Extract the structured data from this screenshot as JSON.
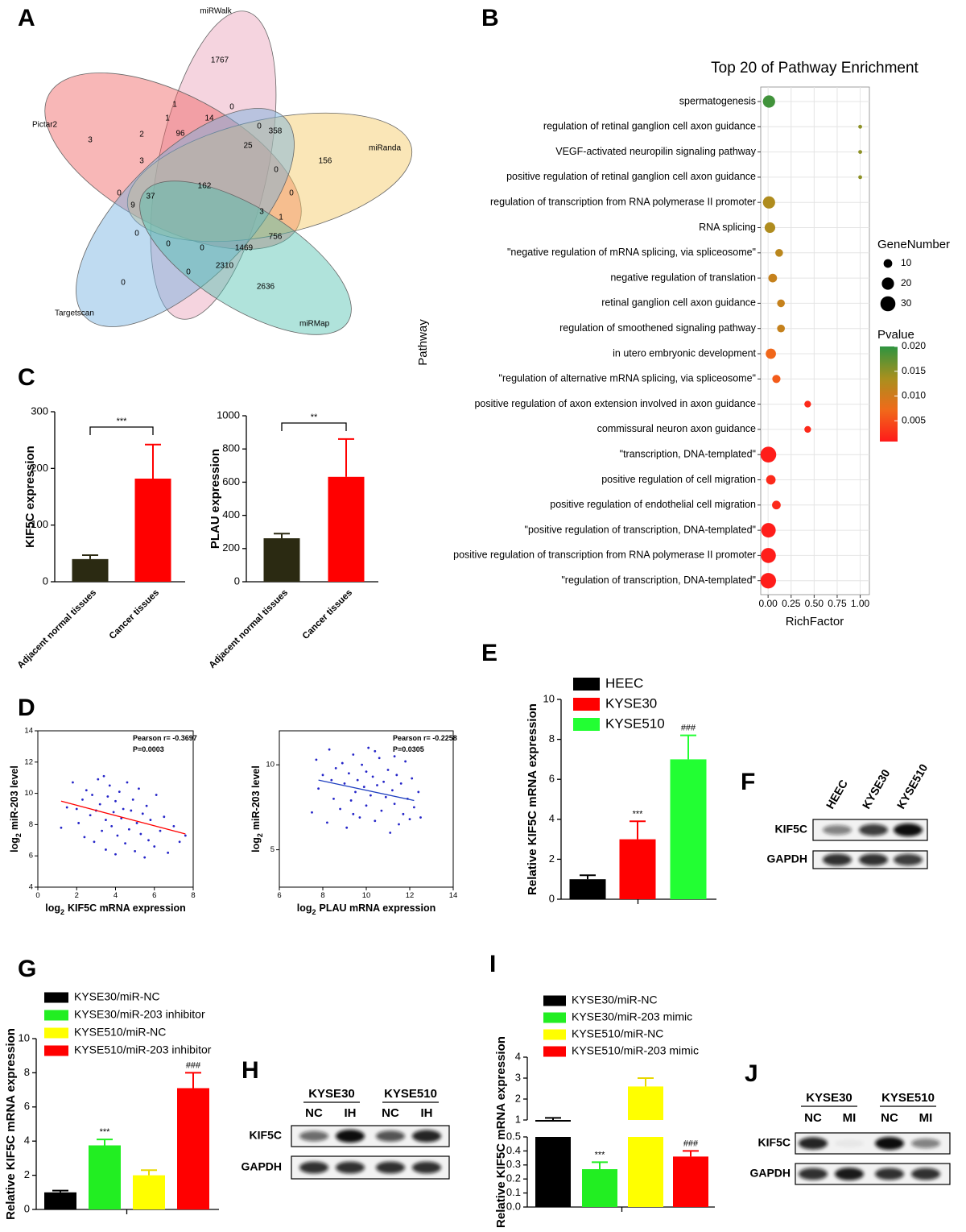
{
  "panel_letters": [
    "A",
    "B",
    "C",
    "D",
    "E",
    "F",
    "G",
    "H",
    "I",
    "J"
  ],
  "venn": {
    "sets": [
      "miRWalk",
      "Pictar2",
      "miRanda",
      "Targetscan",
      "miRMap"
    ],
    "regions": [
      1767,
      1,
      0,
      1,
      14,
      0,
      358,
      3,
      2,
      96,
      156,
      25,
      3,
      0,
      162,
      0,
      0,
      37,
      9,
      3,
      1,
      0,
      756,
      0,
      0,
      1469,
      2310,
      0,
      0,
      2636
    ]
  },
  "chart_data": [
    {
      "type": "dot",
      "title": "Top 20 of Pathway Enrichment",
      "xlabel": "RichFactor",
      "ylabel": "Pathway",
      "categories": [
        "spermatogenesis",
        "regulation of retinal ganglion cell axon guidance",
        "VEGF-activated neuropilin signaling pathway",
        "positive regulation of retinal ganglion cell axon guidance",
        "regulation of transcription from RNA polymerase II promoter",
        "RNA splicing",
        "\"negative regulation of mRNA splicing, via spliceosome\"",
        "negative regulation of translation",
        "retinal ganglion cell axon guidance",
        "regulation of smoothened signaling pathway",
        "in utero embryonic development",
        "\"regulation of alternative mRNA splicing, via spliceosome\"",
        "positive regulation of axon extension involved in axon guidance",
        "commissural neuron axon guidance",
        "\"transcription, DNA-templated\"",
        "positive regulation of cell migration",
        "positive regulation of endothelial cell migration",
        "\"positive regulation of transcription, DNA-templated\"",
        "positive regulation of transcription from RNA polymerase II promoter",
        "\"regulation of transcription, DNA-templated\""
      ],
      "x": [
        0.01,
        1.0,
        1.0,
        1.0,
        0.01,
        0.02,
        0.12,
        0.05,
        0.14,
        0.14,
        0.03,
        0.09,
        0.43,
        0.43,
        0.003,
        0.03,
        0.09,
        0.004,
        0.003,
        0.002
      ],
      "sizes": [
        20,
        2,
        2,
        2,
        20,
        15,
        8,
        10,
        8,
        8,
        14,
        9,
        6,
        6,
        33,
        12,
        10,
        28,
        30,
        32
      ],
      "pvalues": [
        0.019,
        0.015,
        0.015,
        0.015,
        0.013,
        0.013,
        0.012,
        0.011,
        0.011,
        0.011,
        0.007,
        0.006,
        0.002,
        0.002,
        0.001,
        0.002,
        0.002,
        0.001,
        0.001,
        0.001
      ],
      "xlim": [
        -0.08,
        1.1
      ],
      "xticks": [
        {
          "value": 0,
          "label": "0.00"
        },
        {
          "value": 0.25,
          "label": "0.25"
        },
        {
          "value": 0.5,
          "label": "0.50"
        },
        {
          "value": 0.75,
          "label": "0.75"
        },
        {
          "value": 1,
          "label": "1.00"
        }
      ],
      "grid": true,
      "size_legend": {
        "title": "GeneNumber",
        "values": [
          10,
          20,
          30
        ]
      },
      "color_legend": {
        "title": "Pvalue",
        "colorlim": [
          0.0008,
          0.02
        ],
        "ticks": [
          {
            "value": 0.02,
            "label": "0.020"
          },
          {
            "value": 0.015,
            "label": "0.015"
          },
          {
            "value": 0.01,
            "label": "0.010"
          },
          {
            "value": 0.005,
            "label": "0.005"
          }
        ],
        "colors": [
          "#ff1a1a",
          "#f06a1a",
          "#a8901e",
          "#2e9440"
        ]
      }
    },
    {
      "type": "bar",
      "ylabel": "KIF5C expression",
      "categories": [
        "Adjacent normal tissues",
        "Cancer tissues"
      ],
      "values": [
        40,
        182
      ],
      "errors": [
        7,
        60
      ],
      "colors": [
        "#2b2a12",
        "#ff0000"
      ],
      "ylim": [
        0,
        300
      ],
      "yticks": [
        0,
        100,
        200,
        300
      ],
      "bracket": "***"
    },
    {
      "type": "bar",
      "ylabel": "PLAU expression",
      "categories": [
        "Adjacent normal tissues",
        "Cancer tissues"
      ],
      "values": [
        262,
        632
      ],
      "errors": [
        28,
        228
      ],
      "colors": [
        "#2b2a12",
        "#ff0000"
      ],
      "ylim": [
        0,
        1000
      ],
      "yticks": [
        0,
        200,
        400,
        600,
        800,
        1000
      ],
      "bracket": "**"
    },
    {
      "type": "scatter",
      "xlabel": {
        "base": "log",
        "sub": "2",
        "text": "KIF5C mRNA expression"
      },
      "ylabel": {
        "base": "log",
        "sub": "2",
        "text": "miR-203 level"
      },
      "annotation": [
        "Pearson r= -0.3697",
        "P=0.0003"
      ],
      "x": [
        1.2,
        1.5,
        1.8,
        2.0,
        2.1,
        2.3,
        2.4,
        2.5,
        2.7,
        2.8,
        2.9,
        3.0,
        3.1,
        3.2,
        3.3,
        3.4,
        3.5,
        3.5,
        3.6,
        3.7,
        3.8,
        3.9,
        4.0,
        4.0,
        4.1,
        4.2,
        4.3,
        4.4,
        4.5,
        4.6,
        4.7,
        4.8,
        4.9,
        5.0,
        5.1,
        5.2,
        5.3,
        5.4,
        5.5,
        5.6,
        5.7,
        5.8,
        6.0,
        6.1,
        6.3,
        6.5,
        6.7,
        7.0,
        7.3,
        7.6
      ],
      "y": [
        7.8,
        9.1,
        10.7,
        9.0,
        8.1,
        9.6,
        7.2,
        10.2,
        8.6,
        9.9,
        6.9,
        8.9,
        10.9,
        9.3,
        7.6,
        11.1,
        8.3,
        6.4,
        9.8,
        10.5,
        7.9,
        8.8,
        6.1,
        9.5,
        7.3,
        10.1,
        8.4,
        9.0,
        6.8,
        10.7,
        7.7,
        8.9,
        9.6,
        6.3,
        8.1,
        10.3,
        7.4,
        8.7,
        5.9,
        9.2,
        7.0,
        8.3,
        6.6,
        9.9,
        7.6,
        8.5,
        6.2,
        7.9,
        6.9,
        7.3
      ],
      "color": "#2424c8",
      "fit": {
        "x": [
          1.2,
          7.6
        ],
        "y": [
          9.5,
          7.4
        ],
        "color": "#ff0000"
      },
      "xlim": [
        0,
        8
      ],
      "ylim": [
        4,
        14
      ],
      "xticks": [
        0,
        2,
        4,
        6,
        8
      ],
      "yticks": [
        4,
        6,
        8,
        10,
        12,
        14
      ]
    },
    {
      "type": "scatter",
      "xlabel": {
        "base": "log",
        "sub": "2",
        "text": "PLAU mRNA expression"
      },
      "ylabel": {
        "base": "log",
        "sub": "2",
        "text": "miR-203 level"
      },
      "annotation": [
        "Pearson r= -0.2258",
        "P=0.0305"
      ],
      "x": [
        7.5,
        7.7,
        7.8,
        8.0,
        8.2,
        8.3,
        8.5,
        8.6,
        8.8,
        8.9,
        9.0,
        9.1,
        9.2,
        9.3,
        9.4,
        9.5,
        9.6,
        9.7,
        9.8,
        9.9,
        10.0,
        10.0,
        10.1,
        10.2,
        10.3,
        10.4,
        10.5,
        10.6,
        10.7,
        10.8,
        10.9,
        11.0,
        11.1,
        11.2,
        11.3,
        11.4,
        11.5,
        11.6,
        11.7,
        11.8,
        11.9,
        12.0,
        12.1,
        12.2,
        12.4,
        12.5,
        9.4,
        10.4,
        8.4,
        11.3
      ],
      "y": [
        7.2,
        10.3,
        8.6,
        9.4,
        6.6,
        10.9,
        8.0,
        9.8,
        7.4,
        10.1,
        8.9,
        6.3,
        9.5,
        7.9,
        10.6,
        8.4,
        9.1,
        6.9,
        10.0,
        8.7,
        7.6,
        9.6,
        11.0,
        8.2,
        9.3,
        6.7,
        8.8,
        10.4,
        7.3,
        9.0,
        8.1,
        9.7,
        6.0,
        8.5,
        7.7,
        9.4,
        6.5,
        8.9,
        7.1,
        10.2,
        8.0,
        6.8,
        9.2,
        7.5,
        8.4,
        6.9,
        7.1,
        10.8,
        9.1,
        10.5
      ],
      "color": "#2424c8",
      "fit": {
        "x": [
          7.8,
          12.2
        ],
        "y": [
          9.1,
          7.9
        ],
        "color": "#2040c0"
      },
      "xlim": [
        6,
        14
      ],
      "ylim": [
        2.8,
        12
      ],
      "xticks": [
        6,
        8,
        10,
        12,
        14
      ],
      "yticks": [
        5,
        10
      ]
    },
    {
      "type": "bar",
      "ylabel": "Relative KIF5C mRNA expression",
      "categories": [
        "HEEC",
        "KYSE30",
        "KYSE510"
      ],
      "values": [
        1,
        3,
        7
      ],
      "errors": [
        0.2,
        0.9,
        1.2
      ],
      "colors": [
        "#000000",
        "#ff0000",
        "#22ff33"
      ],
      "ylim": [
        0,
        10
      ],
      "yticks": [
        0,
        2,
        4,
        6,
        8,
        10
      ],
      "significance": [
        null,
        "***",
        "###"
      ],
      "legend": true
    },
    {
      "type": "bar",
      "ylabel": "Relative KIF5C mRNA expression",
      "categories": [
        "KYSE30/miR-NC",
        "KYSE30/miR-203 inhibitor",
        "KYSE510/miR-NC",
        "KYSE510/miR-203 inhibitor"
      ],
      "values": [
        1.0,
        3.75,
        2.0,
        7.1
      ],
      "errors": [
        0.1,
        0.35,
        0.3,
        0.9
      ],
      "colors": [
        "#000000",
        "#22ee22",
        "#ffff00",
        "#ff0000"
      ],
      "ylim": [
        0,
        10
      ],
      "yticks": [
        0,
        2,
        4,
        6,
        8,
        10
      ],
      "significance": [
        null,
        "***",
        null,
        "###"
      ],
      "legend": true
    },
    {
      "type": "bar",
      "ylabel": "Relative KIF5C mRNA expression",
      "categories": [
        "KYSE30/miR-NC",
        "KYSE30/miR-203 mimic",
        "KYSE510/miR-NC",
        "KYSE510/miR-203 mimic"
      ],
      "values": [
        1.0,
        0.27,
        2.6,
        0.36
      ],
      "errors": [
        0.1,
        0.05,
        0.4,
        0.04
      ],
      "colors": [
        "#000000",
        "#22ee22",
        "#ffff00",
        "#ff0000"
      ],
      "ylim": [
        0,
        0.5
      ],
      "yticks": [
        {
          "value": 0,
          "label": "0.0"
        },
        0.1,
        0.2,
        0.3,
        0.4,
        0.5
      ],
      "break": {
        "ylim": [
          1,
          4
        ],
        "yticks": [
          1,
          2,
          3,
          4
        ]
      },
      "significance": [
        null,
        "***",
        null,
        "###"
      ],
      "legend": true
    }
  ],
  "blots": [
    {
      "columns": [
        "HEEC",
        "KYSE30",
        "KYSE510"
      ],
      "rows": [
        "KIF5C",
        "GAPDH"
      ]
    },
    {
      "groups": [
        "KYSE30",
        "KYSE510"
      ],
      "columns": [
        "NC",
        "IH",
        "NC",
        "IH"
      ],
      "rows": [
        "KIF5C",
        "GAPDH"
      ]
    },
    {
      "groups": [
        "KYSE30",
        "KYSE510"
      ],
      "columns": [
        "NC",
        "MI",
        "NC",
        "MI"
      ],
      "rows": [
        "KIF5C",
        "GAPDH"
      ]
    }
  ]
}
